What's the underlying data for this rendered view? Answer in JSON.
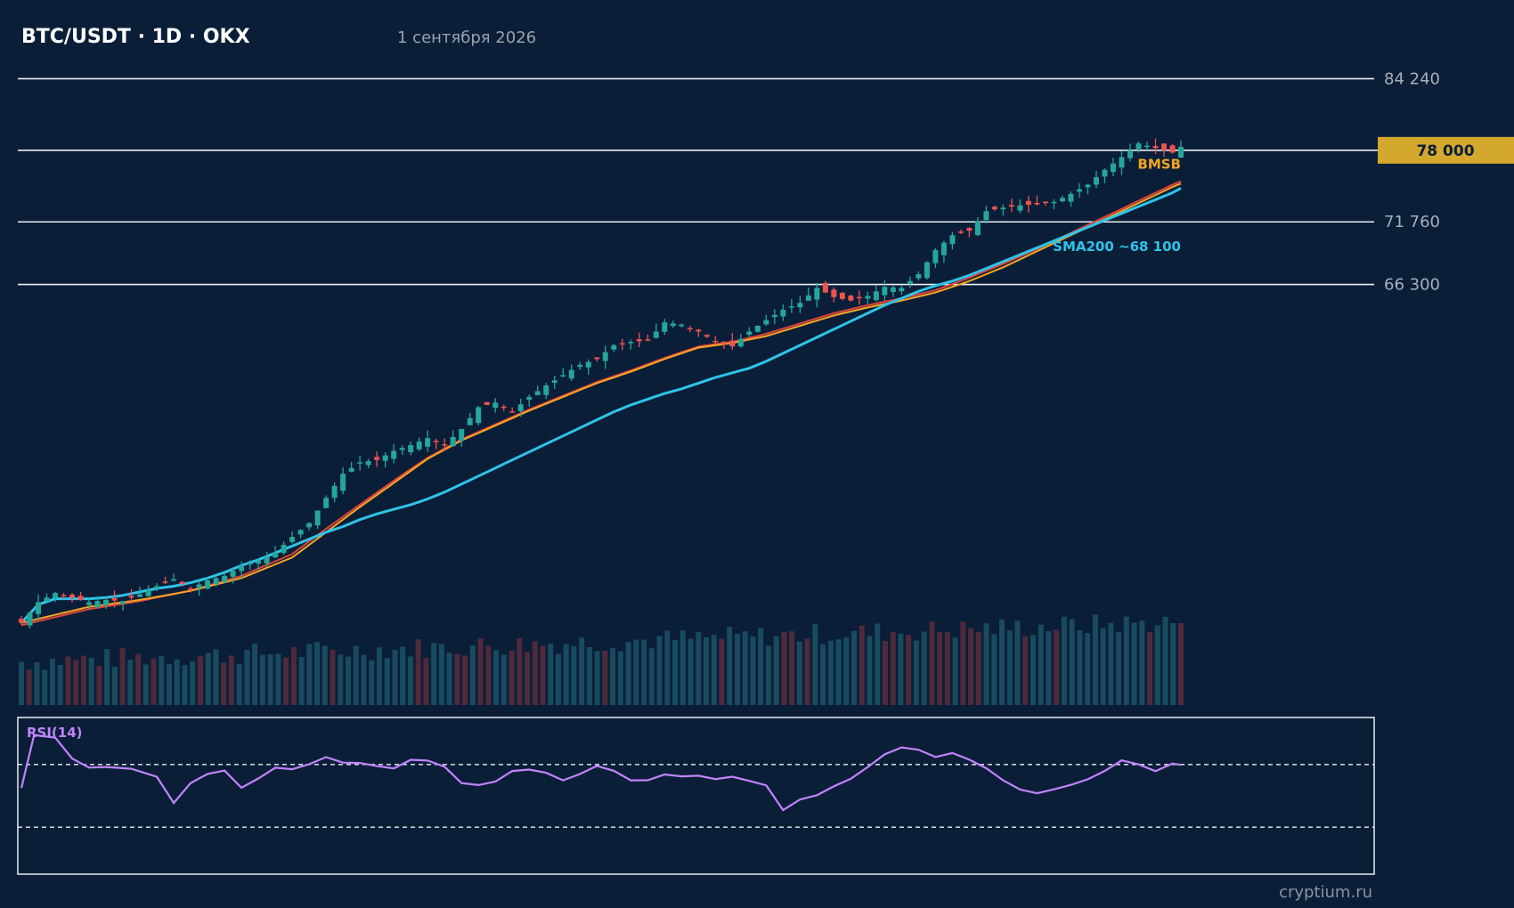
{
  "header": {
    "title": "BTC/USDT · 1D · OKX",
    "date": "1 сентября 2026"
  },
  "watermark": "cryptium.ru",
  "colors": {
    "background": "#0b1e38",
    "up": "#26a69a",
    "down": "#ef5350",
    "sma200": "#2ec4e8",
    "ema_orange": "#f5a623",
    "sma_red": "#e0443c",
    "rsi": "#c084fc",
    "price_tag": "#d4a82c",
    "volume_up": "#184b5e",
    "volume_down": "#4e2a3c"
  },
  "chart_data": {
    "type": "candlestick",
    "symbol": "BTC/USDT",
    "timeframe": "1D",
    "exchange": "OKX",
    "price_levels": [
      {
        "value": 84240,
        "label": "84 240",
        "style": "line"
      },
      {
        "value": 78000,
        "label": "78 000",
        "style": "highlight"
      },
      {
        "value": 71760,
        "label": "71 760",
        "style": "line"
      },
      {
        "value": 66300,
        "label": "66 300",
        "style": "line"
      }
    ],
    "annotations": [
      {
        "text": "BMSB",
        "color": "#f5a623",
        "y": 76400
      },
      {
        "text": "SMA200 ~68 100",
        "color": "#2ec4e8",
        "y": 69200
      }
    ],
    "ylim": [
      36000,
      88000
    ],
    "series": [
      {
        "name": "SMA200",
        "color": "#2ec4e8"
      },
      {
        "name": "EMA",
        "color": "#f5a623"
      },
      {
        "name": "SMA",
        "color": "#e0443c"
      }
    ],
    "close_path": [
      [
        0,
        36800
      ],
      [
        4,
        38600
      ],
      [
        8,
        39400
      ],
      [
        12,
        39000
      ],
      [
        16,
        38600
      ],
      [
        20,
        38800
      ],
      [
        24,
        38700
      ],
      [
        28,
        39300
      ],
      [
        32,
        40000
      ],
      [
        36,
        40600
      ],
      [
        40,
        39800
      ],
      [
        44,
        40500
      ],
      [
        48,
        40900
      ],
      [
        52,
        41800
      ],
      [
        56,
        42200
      ],
      [
        60,
        42900
      ],
      [
        64,
        44300
      ],
      [
        68,
        45500
      ],
      [
        72,
        47700
      ],
      [
        76,
        49800
      ],
      [
        80,
        50800
      ],
      [
        84,
        51000
      ],
      [
        88,
        51800
      ],
      [
        92,
        52300
      ],
      [
        96,
        52900
      ],
      [
        100,
        52300
      ],
      [
        104,
        53700
      ],
      [
        108,
        55600
      ],
      [
        112,
        56000
      ],
      [
        116,
        55200
      ],
      [
        120,
        56500
      ],
      [
        124,
        57500
      ],
      [
        128,
        58400
      ],
      [
        132,
        59300
      ],
      [
        136,
        59800
      ],
      [
        140,
        61000
      ],
      [
        144,
        61300
      ],
      [
        148,
        61400
      ],
      [
        152,
        63000
      ],
      [
        156,
        62800
      ],
      [
        160,
        62200
      ],
      [
        164,
        61300
      ],
      [
        168,
        60900
      ],
      [
        172,
        62200
      ],
      [
        176,
        63200
      ],
      [
        180,
        64100
      ],
      [
        184,
        64700
      ],
      [
        188,
        66000
      ],
      [
        192,
        65200
      ],
      [
        196,
        64900
      ],
      [
        200,
        65300
      ],
      [
        204,
        66100
      ],
      [
        208,
        66000
      ],
      [
        212,
        67200
      ],
      [
        216,
        69300
      ],
      [
        220,
        70600
      ],
      [
        224,
        71000
      ],
      [
        228,
        72700
      ],
      [
        232,
        73000
      ],
      [
        236,
        73200
      ],
      [
        240,
        73300
      ],
      [
        244,
        73500
      ],
      [
        248,
        74200
      ],
      [
        252,
        75000
      ],
      [
        256,
        76300
      ],
      [
        260,
        77400
      ],
      [
        264,
        78600
      ],
      [
        268,
        78200
      ],
      [
        272,
        77800
      ],
      [
        274,
        78300
      ]
    ],
    "sma200_path": [
      [
        0,
        36800
      ],
      [
        4,
        38400
      ],
      [
        8,
        38900
      ],
      [
        12,
        38900
      ],
      [
        16,
        38900
      ],
      [
        20,
        39000
      ],
      [
        24,
        39200
      ],
      [
        28,
        39500
      ],
      [
        32,
        39800
      ],
      [
        36,
        40000
      ],
      [
        40,
        40300
      ],
      [
        44,
        40700
      ],
      [
        48,
        41200
      ],
      [
        52,
        41800
      ],
      [
        56,
        42300
      ],
      [
        60,
        42900
      ],
      [
        64,
        43500
      ],
      [
        68,
        44100
      ],
      [
        72,
        44700
      ],
      [
        76,
        45200
      ],
      [
        80,
        45800
      ],
      [
        84,
        46300
      ],
      [
        88,
        46700
      ],
      [
        92,
        47100
      ],
      [
        96,
        47600
      ],
      [
        100,
        48200
      ],
      [
        104,
        48900
      ],
      [
        108,
        49600
      ],
      [
        112,
        50300
      ],
      [
        116,
        51000
      ],
      [
        120,
        51700
      ],
      [
        124,
        52400
      ],
      [
        128,
        53100
      ],
      [
        132,
        53800
      ],
      [
        136,
        54500
      ],
      [
        140,
        55200
      ],
      [
        144,
        55800
      ],
      [
        148,
        56300
      ],
      [
        152,
        56800
      ],
      [
        156,
        57200
      ],
      [
        160,
        57700
      ],
      [
        164,
        58200
      ],
      [
        168,
        58600
      ],
      [
        172,
        59000
      ],
      [
        176,
        59600
      ],
      [
        180,
        60300
      ],
      [
        184,
        61000
      ],
      [
        188,
        61700
      ],
      [
        192,
        62400
      ],
      [
        196,
        63100
      ],
      [
        200,
        63800
      ],
      [
        204,
        64500
      ],
      [
        208,
        65100
      ],
      [
        212,
        65700
      ],
      [
        216,
        66200
      ],
      [
        220,
        66600
      ],
      [
        224,
        67100
      ],
      [
        228,
        67700
      ],
      [
        232,
        68300
      ],
      [
        236,
        68900
      ],
      [
        240,
        69500
      ],
      [
        244,
        70100
      ],
      [
        248,
        70700
      ],
      [
        252,
        71300
      ],
      [
        256,
        71900
      ],
      [
        260,
        72500
      ],
      [
        264,
        73100
      ],
      [
        268,
        73700
      ],
      [
        272,
        74300
      ],
      [
        274,
        74700
      ]
    ],
    "ema_path": [
      [
        0,
        36800
      ],
      [
        16,
        38200
      ],
      [
        28,
        38800
      ],
      [
        40,
        39600
      ],
      [
        52,
        40700
      ],
      [
        64,
        42500
      ],
      [
        72,
        44700
      ],
      [
        80,
        46900
      ],
      [
        88,
        49000
      ],
      [
        96,
        51100
      ],
      [
        104,
        52700
      ],
      [
        112,
        54000
      ],
      [
        120,
        55300
      ],
      [
        128,
        56500
      ],
      [
        136,
        57700
      ],
      [
        144,
        58700
      ],
      [
        152,
        59800
      ],
      [
        160,
        60800
      ],
      [
        168,
        61200
      ],
      [
        176,
        61800
      ],
      [
        184,
        62700
      ],
      [
        192,
        63600
      ],
      [
        200,
        64300
      ],
      [
        208,
        64900
      ],
      [
        216,
        65600
      ],
      [
        224,
        66600
      ],
      [
        232,
        67800
      ],
      [
        240,
        69200
      ],
      [
        248,
        70600
      ],
      [
        256,
        72000
      ],
      [
        264,
        73400
      ],
      [
        272,
        74800
      ],
      [
        274,
        75100
      ]
    ],
    "sma_path": [
      [
        0,
        36600
      ],
      [
        16,
        38000
      ],
      [
        28,
        38700
      ],
      [
        40,
        39600
      ],
      [
        52,
        40900
      ],
      [
        64,
        42800
      ],
      [
        72,
        45000
      ],
      [
        80,
        47100
      ],
      [
        88,
        49200
      ],
      [
        96,
        51200
      ],
      [
        104,
        52800
      ],
      [
        112,
        54100
      ],
      [
        120,
        55400
      ],
      [
        128,
        56600
      ],
      [
        136,
        57800
      ],
      [
        144,
        58800
      ],
      [
        152,
        59900
      ],
      [
        160,
        60900
      ],
      [
        168,
        61300
      ],
      [
        176,
        62000
      ],
      [
        184,
        62900
      ],
      [
        192,
        63800
      ],
      [
        200,
        64500
      ],
      [
        208,
        65100
      ],
      [
        216,
        65800
      ],
      [
        224,
        66900
      ],
      [
        232,
        68100
      ],
      [
        240,
        69400
      ],
      [
        248,
        70800
      ],
      [
        256,
        72200
      ],
      [
        264,
        73600
      ],
      [
        272,
        75000
      ],
      [
        274,
        75300
      ]
    ],
    "volume": {
      "count": 150,
      "max": 100
    },
    "rsi": {
      "period": 14,
      "label": "RSI(14)",
      "levels": [
        70,
        30
      ],
      "ylim": [
        0,
        100
      ],
      "path": [
        [
          0,
          55
        ],
        [
          3,
          89
        ],
        [
          8,
          88
        ],
        [
          12,
          72
        ],
        [
          16,
          67
        ],
        [
          20,
          70
        ],
        [
          26,
          68
        ],
        [
          32,
          63
        ],
        [
          36,
          45
        ],
        [
          40,
          58
        ],
        [
          44,
          64
        ],
        [
          48,
          67
        ],
        [
          52,
          57
        ],
        [
          56,
          60
        ],
        [
          60,
          68
        ],
        [
          64,
          68
        ],
        [
          68,
          70
        ],
        [
          72,
          74
        ],
        [
          76,
          71
        ],
        [
          80,
          72
        ],
        [
          84,
          70
        ],
        [
          88,
          68
        ],
        [
          92,
          74
        ],
        [
          96,
          72
        ],
        [
          100,
          70
        ],
        [
          104,
          60
        ],
        [
          108,
          58
        ],
        [
          112,
          60
        ],
        [
          116,
          64
        ],
        [
          120,
          67
        ],
        [
          124,
          66
        ],
        [
          128,
          60
        ],
        [
          132,
          63
        ],
        [
          136,
          70
        ],
        [
          140,
          64
        ],
        [
          144,
          60
        ],
        [
          148,
          58
        ],
        [
          152,
          62
        ],
        [
          156,
          64
        ],
        [
          160,
          62
        ],
        [
          164,
          60
        ],
        [
          168,
          64
        ],
        [
          172,
          58
        ],
        [
          176,
          56
        ],
        [
          180,
          40
        ],
        [
          184,
          46
        ],
        [
          188,
          51
        ],
        [
          192,
          56
        ],
        [
          196,
          62
        ],
        [
          200,
          70
        ],
        [
          204,
          75
        ],
        [
          208,
          82
        ],
        [
          212,
          80
        ],
        [
          216,
          76
        ],
        [
          220,
          78
        ],
        [
          224,
          73
        ],
        [
          228,
          66
        ],
        [
          232,
          58
        ],
        [
          236,
          56
        ],
        [
          240,
          52
        ],
        [
          244,
          54
        ],
        [
          248,
          58
        ],
        [
          252,
          62
        ],
        [
          256,
          66
        ],
        [
          260,
          72
        ],
        [
          264,
          70
        ],
        [
          268,
          67
        ],
        [
          272,
          70
        ],
        [
          274,
          68
        ]
      ]
    }
  }
}
